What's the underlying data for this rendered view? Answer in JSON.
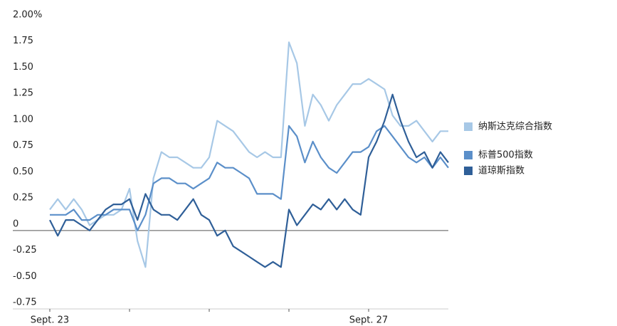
{
  "chart_data": {
    "type": "line",
    "x": [
      0,
      0.1,
      0.2,
      0.3,
      0.4,
      0.5,
      0.6,
      0.7,
      0.8,
      0.9,
      1,
      1.1,
      1.2,
      1.3,
      1.4,
      1.5,
      1.6,
      1.7,
      1.8,
      1.9,
      2,
      2.1,
      2.2,
      2.3,
      2.4,
      2.5,
      2.6,
      2.7,
      2.8,
      2.9,
      3,
      3.1,
      3.2,
      3.3,
      3.4,
      3.5,
      3.6,
      3.7,
      3.8,
      3.9,
      4,
      4.1,
      4.2,
      4.3,
      4.4,
      4.5,
      4.6,
      4.7,
      4.8,
      4.9,
      5
    ],
    "xlim": [
      0,
      5
    ],
    "xticks": [
      0,
      1,
      2,
      3,
      4
    ],
    "xtick_labels": [
      "Sept. 23",
      null,
      null,
      null,
      "Sept. 27"
    ],
    "ylim": [
      -0.75,
      2
    ],
    "yticks": [
      {
        "value": 2,
        "label": "2.00%"
      },
      1.75,
      {
        "value": 1.5,
        "label": "1.50"
      },
      1.25,
      {
        "value": 1,
        "label": "1.00"
      },
      0.75,
      {
        "value": 0.5,
        "label": "0.50"
      },
      0.25,
      0,
      -0.25,
      {
        "value": -0.5,
        "label": "-0.50"
      },
      -0.75
    ],
    "series": [
      {
        "name": "纳斯达克综合指数",
        "color": "#a7c8e6",
        "values": [
          0.2,
          0.3,
          0.2,
          0.3,
          0.2,
          0.05,
          0.1,
          0.15,
          0.15,
          0.2,
          0.4,
          -0.1,
          -0.35,
          0.5,
          0.75,
          0.7,
          0.7,
          0.65,
          0.6,
          0.6,
          0.7,
          1.05,
          1.0,
          0.95,
          0.85,
          0.75,
          0.7,
          0.75,
          0.7,
          0.7,
          1.8,
          1.6,
          1.0,
          1.3,
          1.2,
          1.05,
          1.2,
          1.3,
          1.4,
          1.4,
          1.45,
          1.4,
          1.35,
          1.1,
          1.0,
          1.0,
          1.05,
          0.95,
          0.85,
          0.95,
          0.95
        ]
      },
      {
        "name": "标普500指数",
        "color": "#5b8fc9",
        "values": [
          0.15,
          0.15,
          0.15,
          0.2,
          0.1,
          0.1,
          0.15,
          0.15,
          0.2,
          0.2,
          0.2,
          0.0,
          0.15,
          0.45,
          0.5,
          0.5,
          0.45,
          0.45,
          0.4,
          0.45,
          0.5,
          0.65,
          0.6,
          0.6,
          0.55,
          0.5,
          0.35,
          0.35,
          0.35,
          0.3,
          1.0,
          0.9,
          0.65,
          0.85,
          0.7,
          0.6,
          0.55,
          0.65,
          0.75,
          0.75,
          0.8,
          0.95,
          1.0,
          0.9,
          0.8,
          0.7,
          0.65,
          0.7,
          0.6,
          0.7,
          0.6
        ]
      },
      {
        "name": "道琼斯指数",
        "color": "#2f5f98",
        "values": [
          0.1,
          -0.05,
          0.1,
          0.1,
          0.05,
          0.0,
          0.1,
          0.2,
          0.25,
          0.25,
          0.3,
          0.1,
          0.35,
          0.2,
          0.15,
          0.15,
          0.1,
          0.2,
          0.3,
          0.15,
          0.1,
          -0.05,
          0.0,
          -0.15,
          -0.2,
          -0.25,
          -0.3,
          -0.35,
          -0.3,
          -0.35,
          0.2,
          0.05,
          0.15,
          0.25,
          0.2,
          0.3,
          0.2,
          0.3,
          0.2,
          0.15,
          0.7,
          0.85,
          1.05,
          1.3,
          1.05,
          0.85,
          0.7,
          0.75,
          0.6,
          0.75,
          0.65
        ]
      }
    ]
  }
}
